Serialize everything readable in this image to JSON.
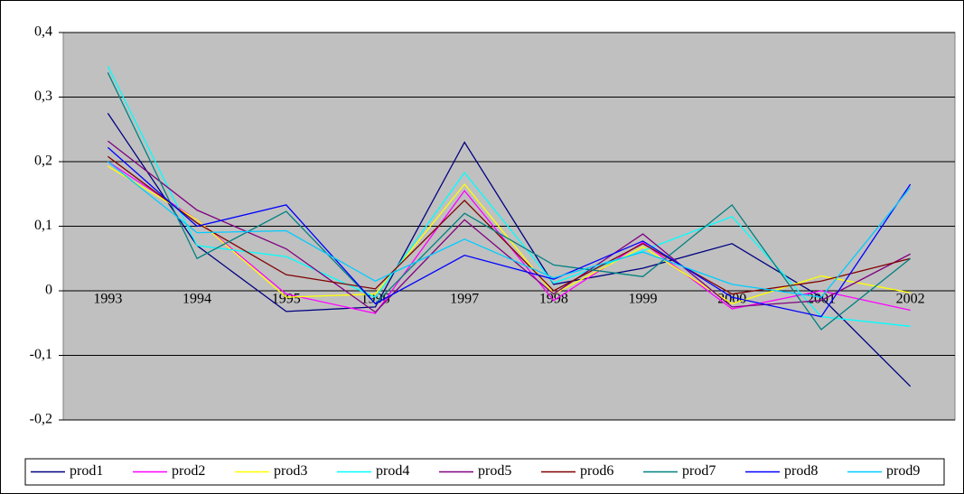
{
  "chart_data": {
    "type": "line",
    "categories": [
      "1993",
      "1994",
      "1995",
      "1996",
      "1997",
      "1998",
      "1999",
      "2000",
      "2001",
      "2002"
    ],
    "series": [
      {
        "name": "prod1",
        "color": "#000080",
        "values": [
          0.275,
          0.07,
          -0.032,
          -0.025,
          0.23,
          0.01,
          0.035,
          0.073,
          -0.01,
          -0.148
        ]
      },
      {
        "name": "prod2",
        "color": "#ff00ff",
        "values": [
          0.2,
          0.11,
          -0.005,
          -0.035,
          0.155,
          -0.015,
          0.075,
          -0.028,
          0.0,
          -0.03
        ]
      },
      {
        "name": "prod3",
        "color": "#ffff00",
        "values": [
          0.193,
          0.11,
          -0.01,
          -0.005,
          0.165,
          -0.005,
          0.068,
          -0.02,
          0.023,
          -0.003
        ]
      },
      {
        "name": "prod4",
        "color": "#00ffff",
        "values": [
          0.348,
          0.07,
          0.053,
          -0.01,
          0.183,
          0.012,
          0.062,
          0.115,
          -0.04,
          -0.055
        ]
      },
      {
        "name": "prod5",
        "color": "#800080",
        "values": [
          0.232,
          0.125,
          0.065,
          -0.033,
          0.11,
          -0.005,
          0.088,
          -0.025,
          -0.015,
          0.057
        ]
      },
      {
        "name": "prod6",
        "color": "#800000",
        "values": [
          0.208,
          0.105,
          0.025,
          0.003,
          0.14,
          0.0,
          0.073,
          -0.005,
          0.015,
          0.05
        ]
      },
      {
        "name": "prod7",
        "color": "#008080",
        "values": [
          0.338,
          0.05,
          0.123,
          -0.02,
          0.12,
          0.04,
          0.022,
          0.133,
          -0.06,
          0.05
        ]
      },
      {
        "name": "prod8",
        "color": "#0000ff",
        "values": [
          0.222,
          0.1,
          0.133,
          -0.02,
          0.055,
          0.018,
          0.077,
          -0.01,
          -0.04,
          0.165
        ]
      },
      {
        "name": "prod9",
        "color": "#00ccff",
        "values": [
          0.2,
          0.09,
          0.093,
          0.015,
          0.08,
          0.02,
          0.06,
          0.01,
          -0.01,
          0.16
        ]
      }
    ],
    "ylim": [
      -0.2,
      0.4
    ],
    "yticks": [
      {
        "value": -0.2,
        "label": "-0,2"
      },
      {
        "value": -0.1,
        "label": "-0,1"
      },
      0,
      {
        "value": 0.1,
        "label": "0,1"
      },
      {
        "value": 0.2,
        "label": "0,2"
      },
      {
        "value": 0.3,
        "label": "0,3"
      },
      {
        "value": 0.4,
        "label": "0,4"
      }
    ],
    "grid": true,
    "legend": "bottom",
    "plot_background": "#c0c0c0"
  }
}
